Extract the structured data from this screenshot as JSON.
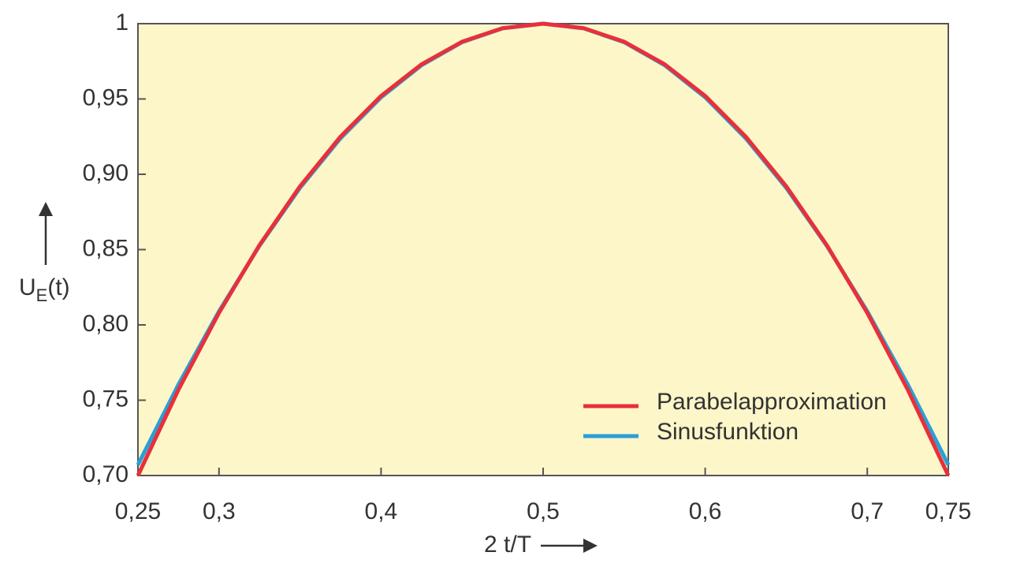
{
  "chart_data": {
    "type": "line",
    "x_label": "2 t/T",
    "y_label": {
      "main": "U",
      "sub": "E",
      "rest": "(t)"
    },
    "x": [
      0.25,
      0.275,
      0.3,
      0.325,
      0.35,
      0.375,
      0.4,
      0.425,
      0.45,
      0.475,
      0.5,
      0.525,
      0.55,
      0.575,
      0.6,
      0.625,
      0.65,
      0.675,
      0.7,
      0.725,
      0.75
    ],
    "series": [
      {
        "name": "Parabelapproximation",
        "color": "#e8303a",
        "values": [
          0.7,
          0.757,
          0.808,
          0.853,
          0.892,
          0.925,
          0.952,
          0.973,
          0.988,
          0.997,
          1.0,
          0.997,
          0.988,
          0.973,
          0.952,
          0.925,
          0.892,
          0.853,
          0.808,
          0.757,
          0.7
        ]
      },
      {
        "name": "Sinusfunktion",
        "color": "#2a9fd8",
        "values": [
          0.7071,
          0.7604,
          0.809,
          0.8526,
          0.891,
          0.9239,
          0.9511,
          0.9724,
          0.9877,
          0.9969,
          1.0,
          0.9969,
          0.9877,
          0.9724,
          0.9511,
          0.9239,
          0.891,
          0.8526,
          0.809,
          0.7604,
          0.7071
        ]
      }
    ],
    "xlim": [
      0.25,
      0.75
    ],
    "xticks": [
      {
        "value": 0.25,
        "label": "0,25"
      },
      {
        "value": 0.3,
        "label": "0,3"
      },
      {
        "value": 0.4,
        "label": "0,4"
      },
      {
        "value": 0.5,
        "label": "0,5"
      },
      {
        "value": 0.6,
        "label": "0,6"
      },
      {
        "value": 0.7,
        "label": "0,7"
      },
      {
        "value": 0.75,
        "label": "0,75"
      }
    ],
    "ylim": [
      0.7,
      1
    ],
    "yticks": [
      {
        "value": 0.7,
        "label": "0,70"
      },
      {
        "value": 0.75,
        "label": "0,75"
      },
      {
        "value": 0.8,
        "label": "0,80"
      },
      {
        "value": 0.85,
        "label": "0,85"
      },
      {
        "value": 0.9,
        "label": "0,90"
      },
      {
        "value": 0.95,
        "label": "0,95"
      },
      1
    ],
    "background": "#fcf6c9",
    "legend": "lower-right"
  }
}
